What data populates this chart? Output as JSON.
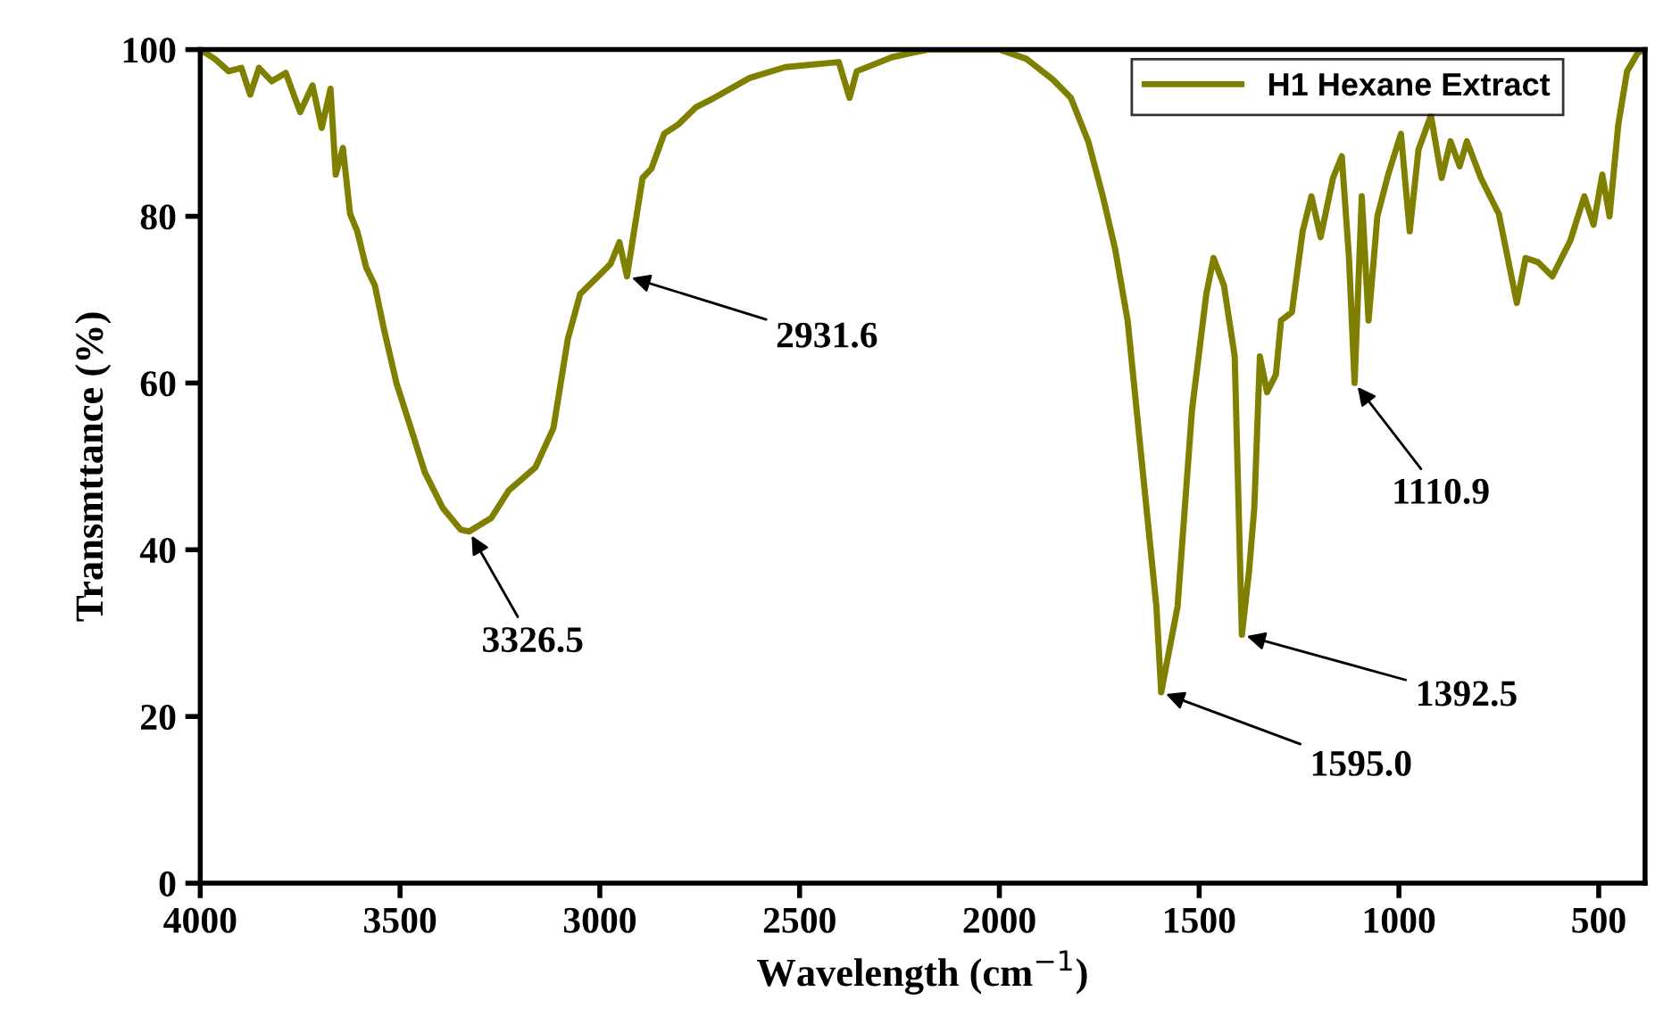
{
  "chart_data": {
    "type": "line",
    "xlabel": "Wavelength (cm$^{−1}$)",
    "ylabel": "Transmttance (%)",
    "xlim": [
      4000,
      384
    ],
    "ylim": [
      0,
      100
    ],
    "xticks": [
      4000,
      3500,
      3000,
      2500,
      2000,
      1500,
      1000,
      500
    ],
    "yticks": [
      0,
      20,
      40,
      60,
      80,
      100
    ],
    "legend": "top right",
    "grid": false,
    "marker": "none",
    "line_style": "solid",
    "series": [
      {
        "name": "H1 Hexane Extract",
        "color": "#808000",
        "x": [
          4000,
          3964,
          3929,
          3897,
          3875,
          3853,
          3821,
          3786,
          3750,
          3719,
          3696,
          3674,
          3661,
          3643,
          3625,
          3607,
          3585,
          3563,
          3540,
          3509,
          3473,
          3438,
          3393,
          3348,
          3327,
          3272,
          3228,
          3161,
          3116,
          3080,
          3049,
          3004,
          2973,
          2951,
          2932,
          2915,
          2893,
          2871,
          2839,
          2804,
          2759,
          2714,
          2625,
          2536,
          2402,
          2375,
          2357,
          2268,
          2179,
          2089,
          2000,
          1933,
          1866,
          1821,
          1777,
          1741,
          1710,
          1679,
          1643,
          1607,
          1595,
          1554,
          1518,
          1482,
          1464,
          1438,
          1411,
          1393,
          1375,
          1362,
          1348,
          1330,
          1308,
          1295,
          1268,
          1241,
          1219,
          1196,
          1165,
          1143,
          1125,
          1111,
          1093,
          1076,
          1054,
          1027,
          995,
          973,
          951,
          920,
          893,
          871,
          848,
          830,
          795,
          750,
          705,
          683,
          652,
          616,
          571,
          536,
          513,
          491,
          473,
          451,
          429,
          402,
          384
        ],
        "values": [
          100,
          98.9,
          97.4,
          97.8,
          94.6,
          97.8,
          96.2,
          97.2,
          92.5,
          95.7,
          90.6,
          95.3,
          85,
          88.2,
          80.3,
          78.2,
          73.9,
          71.7,
          66.4,
          60,
          54.6,
          49.3,
          45,
          42.4,
          42.2,
          43.8,
          47.1,
          49.9,
          54.6,
          65.3,
          70.7,
          72.8,
          74.3,
          76.9,
          72.8,
          78,
          84.6,
          85.7,
          89.9,
          91,
          93.1,
          94.2,
          96.6,
          97.9,
          98.5,
          94.2,
          97.4,
          99.1,
          100,
          100,
          100,
          98.9,
          96.4,
          94.2,
          88.9,
          82.4,
          76,
          67.5,
          50.3,
          33.2,
          22.9,
          33.2,
          56.7,
          70.7,
          75,
          71.7,
          63.2,
          29.8,
          37.5,
          45,
          63.2,
          58.9,
          61,
          67.5,
          68.5,
          78.2,
          82.4,
          77.5,
          84.6,
          87.2,
          75,
          60,
          82.4,
          67.5,
          80,
          85,
          89.9,
          78.2,
          88,
          92.1,
          84.6,
          89,
          86,
          89,
          84.6,
          80.3,
          69.6,
          75,
          74.5,
          72.8,
          77.1,
          82.4,
          79,
          85,
          80,
          91,
          97.4,
          99.6,
          100
        ]
      }
    ],
    "annotations": [
      {
        "text": "3326.5",
        "x": 3327,
        "y": 42.2
      },
      {
        "text": "2931.6",
        "x": 2932,
        "y": 72.8
      },
      {
        "text": "1595.0",
        "x": 1595,
        "y": 22.9
      },
      {
        "text": "1392.5",
        "x": 1393,
        "y": 29.8
      },
      {
        "text": "1110.9",
        "x": 1111,
        "y": 60
      }
    ]
  }
}
